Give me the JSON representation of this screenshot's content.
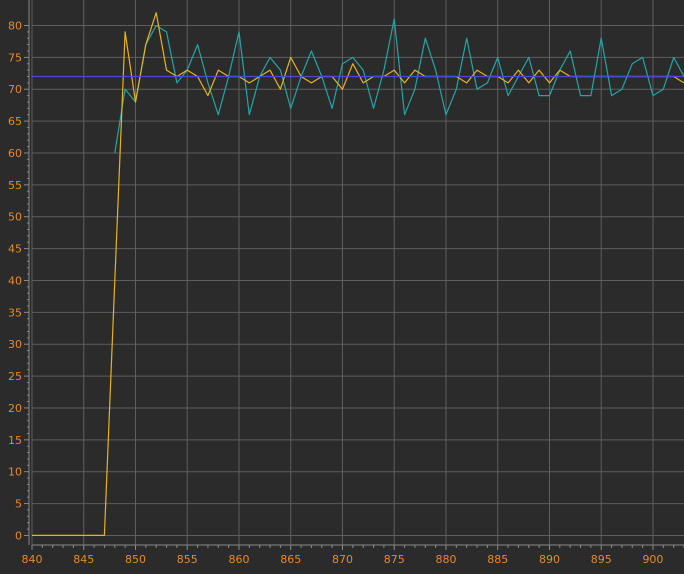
{
  "chart_data": {
    "type": "line",
    "x_range": [
      840,
      903
    ],
    "y_range": [
      -1.5,
      84
    ],
    "grid": true,
    "x_ticks": [
      840,
      845,
      850,
      855,
      860,
      865,
      870,
      875,
      880,
      885,
      890,
      895,
      900
    ],
    "y_ticks": [
      0,
      5,
      10,
      15,
      20,
      25,
      30,
      35,
      40,
      45,
      50,
      55,
      60,
      65,
      70,
      75,
      80
    ],
    "series": [
      {
        "color": "#1fa7a8",
        "x": [
          848,
          849,
          850,
          851,
          852,
          853,
          854,
          855,
          856,
          857,
          858,
          859,
          860,
          861,
          862,
          863,
          864,
          865,
          866,
          867,
          868,
          869,
          870,
          871,
          872,
          873,
          874,
          875,
          876,
          877,
          878,
          879,
          880,
          881,
          882,
          883,
          884,
          885,
          886,
          887,
          888,
          889,
          890,
          891,
          892,
          893,
          894,
          895,
          896,
          897,
          898,
          899,
          900,
          901,
          902,
          903
        ],
        "y": [
          60,
          70,
          68,
          77,
          80,
          79,
          71,
          73,
          77,
          71,
          66,
          72,
          79,
          66,
          72,
          75,
          73,
          67,
          72,
          76,
          72,
          67,
          74,
          75,
          73,
          67,
          73,
          81,
          66,
          70,
          78,
          73,
          66,
          70,
          78,
          70,
          71,
          75,
          69,
          72,
          75,
          69,
          69,
          73,
          76,
          69,
          69,
          78,
          69,
          70,
          74,
          75,
          69,
          70,
          75,
          72
        ]
      },
      {
        "color": "#e8b41a",
        "x": [
          840,
          841,
          842,
          843,
          844,
          845,
          846,
          847,
          848,
          849,
          850,
          851,
          852,
          853,
          854,
          855,
          856,
          857,
          858,
          859,
          860,
          861,
          862,
          863,
          864,
          865,
          866,
          867,
          868,
          869,
          870,
          871,
          872,
          873,
          874,
          875,
          876,
          877,
          878,
          879,
          880,
          881,
          882,
          883,
          884,
          885,
          886,
          887,
          888,
          889,
          890,
          891,
          892,
          893,
          894,
          895,
          896,
          897,
          898,
          899,
          900,
          901,
          902,
          903
        ],
        "y": [
          0,
          0,
          0,
          0,
          0,
          0,
          0,
          0,
          40,
          79,
          68,
          77,
          82,
          73,
          72,
          73,
          72,
          69,
          73,
          72,
          72,
          71,
          72,
          73,
          70,
          75,
          72,
          71,
          72,
          72,
          70,
          74,
          71,
          72,
          72,
          73,
          71,
          73,
          72,
          72,
          72,
          72,
          71,
          73,
          72,
          72,
          71,
          73,
          71,
          73,
          71,
          73,
          72,
          72,
          72,
          72,
          72,
          72,
          72,
          72,
          72,
          72,
          72,
          71
        ]
      },
      {
        "color": "#4a4ad8",
        "x": [
          840,
          903
        ],
        "y": [
          72,
          72
        ]
      }
    ]
  }
}
